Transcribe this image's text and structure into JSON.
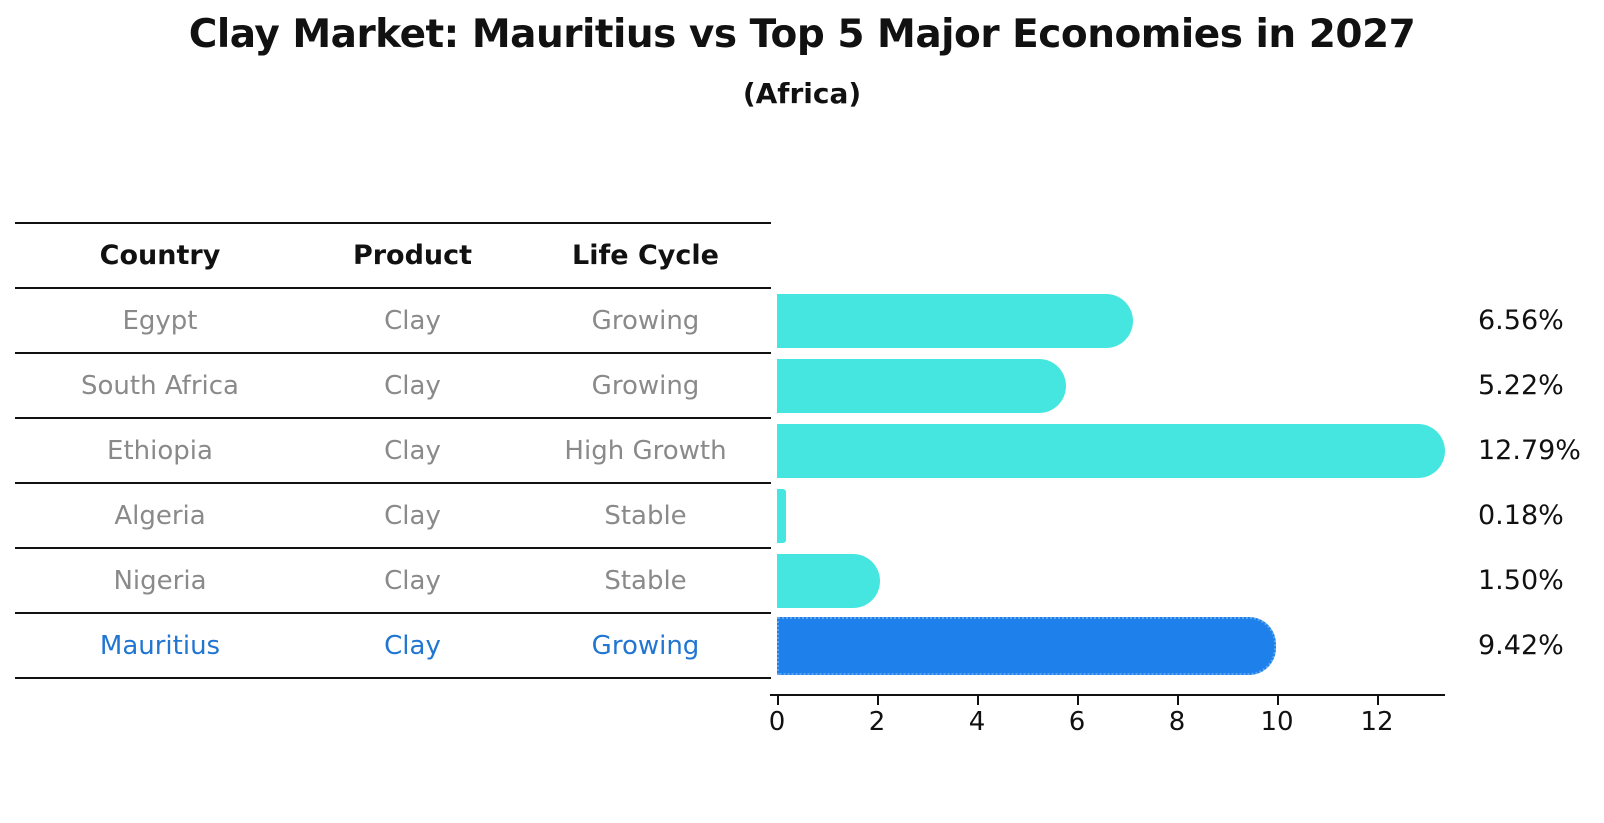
{
  "chart_data": {
    "type": "bar",
    "orientation": "horizontal",
    "title": "Clay Market: Mauritius vs Top 5 Major Economies in 2027",
    "subtitle": "(Africa)",
    "table_headers": [
      "Country",
      "Product",
      "Life Cycle"
    ],
    "rows": [
      {
        "country": "Egypt",
        "product": "Clay",
        "life_cycle": "Growing",
        "value": 6.56,
        "label": "6.56%",
        "highlight": false
      },
      {
        "country": "South Africa",
        "product": "Clay",
        "life_cycle": "Growing",
        "value": 5.22,
        "label": "5.22%",
        "highlight": false
      },
      {
        "country": "Ethiopia",
        "product": "Clay",
        "life_cycle": "High Growth",
        "value": 12.79,
        "label": "12.79%",
        "highlight": false
      },
      {
        "country": "Algeria",
        "product": "Clay",
        "life_cycle": "Stable",
        "value": 0.18,
        "label": "0.18%",
        "highlight": false
      },
      {
        "country": "Nigeria",
        "product": "Clay",
        "life_cycle": "Stable",
        "value": 1.5,
        "label": "1.50%",
        "highlight": false
      },
      {
        "country": "Mauritius",
        "product": "Clay",
        "life_cycle": "Growing",
        "value": 9.42,
        "label": "9.42%",
        "highlight": true
      }
    ],
    "x_ticks": [
      0,
      2,
      4,
      6,
      8,
      10,
      12
    ],
    "xlim": [
      0,
      13.5
    ],
    "xlabel": "",
    "ylabel": "",
    "grid": false,
    "legend": "none",
    "colors": {
      "bar_default": "#45e6e0",
      "bar_highlight": "#1e80ea",
      "bar_highlight_border": "#5aa7f0",
      "highlight_text": "#2176d2",
      "row_text": "#8a8a8a",
      "header_text": "#111111",
      "axis_text": "#111111"
    }
  }
}
